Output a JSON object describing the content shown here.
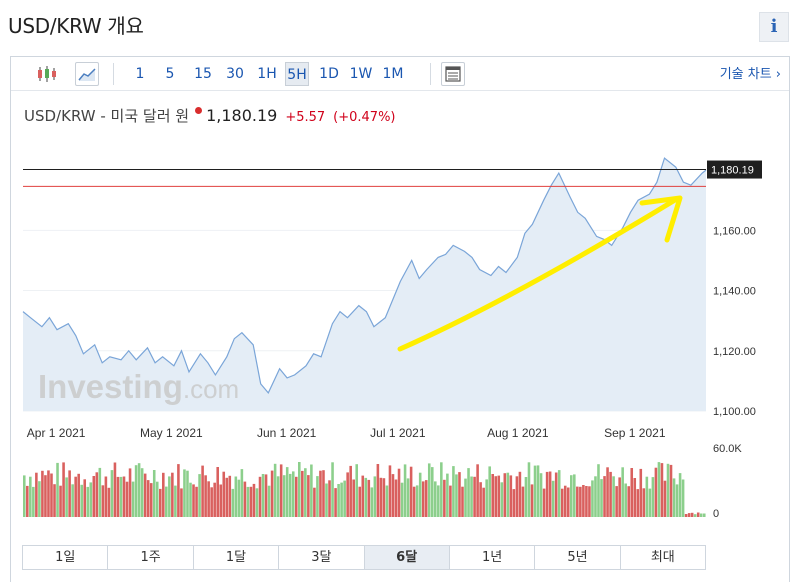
{
  "page": {
    "title": "USD/KRW 개요",
    "info_label": "i"
  },
  "toolbar": {
    "intervals": [
      "1",
      "5",
      "15",
      "30",
      "1H",
      "5H",
      "1D",
      "1W",
      "1M"
    ],
    "active_interval": "5H",
    "advanced_label": "기술 차트 ›"
  },
  "quote": {
    "name": "USD/KRW - 미국 달러 원",
    "price": "1,180.19",
    "change": "+5.57",
    "change_pct": "(+0.47%)"
  },
  "ranges": {
    "items": [
      "1일",
      "1주",
      "1달",
      "3달",
      "6달",
      "1년",
      "5년",
      "최대"
    ],
    "active": "6달"
  },
  "watermark": {
    "text_main": "Investing",
    "text_suffix": ".com"
  },
  "chart_data": {
    "type": "area",
    "colors": {
      "line": "#7aa5d8",
      "fill": "#e4edf6",
      "up": "#8ccf8c",
      "down": "#d9605e",
      "current_line": "#1f1f1f",
      "prev_close_line": "#e0403e",
      "arrow": "#ffee00"
    },
    "y_axis": {
      "ticks": [
        1100,
        1120,
        1140,
        1160
      ],
      "tick_labels": [
        "1,100.00",
        "1,120.00",
        "1,140.00",
        "1,160.00"
      ],
      "range": [
        1100,
        1190
      ]
    },
    "x_axis": {
      "ticks": [
        "2021-04-01",
        "2021-05-01",
        "2021-06-01",
        "2021-07-01",
        "2021-08-01",
        "2021-09-01"
      ],
      "tick_labels": [
        "Apr 1 2021",
        "May 1 2021",
        "Jun 1 2021",
        "Jul 1 2021",
        "Aug 1 2021",
        "Sep 1 2021"
      ],
      "range": [
        "2021-03-31",
        "2021-09-28"
      ]
    },
    "current_price": {
      "value": 1180.19,
      "label": "1,180.19"
    },
    "previous_close": 1174.6,
    "series": [
      {
        "points": [
          [
            "2021-03-31",
            1133
          ],
          [
            "2021-04-02",
            1131
          ],
          [
            "2021-04-05",
            1128
          ],
          [
            "2021-04-07",
            1131
          ],
          [
            "2021-04-09",
            1127
          ],
          [
            "2021-04-12",
            1129
          ],
          [
            "2021-04-14",
            1125
          ],
          [
            "2021-04-16",
            1119
          ],
          [
            "2021-04-19",
            1122
          ],
          [
            "2021-04-21",
            1116
          ],
          [
            "2021-04-23",
            1118
          ],
          [
            "2021-04-26",
            1117
          ],
          [
            "2021-04-28",
            1120
          ],
          [
            "2021-04-30",
            1117
          ],
          [
            "2021-05-03",
            1121
          ],
          [
            "2021-05-05",
            1116
          ],
          [
            "2021-05-07",
            1118
          ],
          [
            "2021-05-10",
            1115
          ],
          [
            "2021-05-12",
            1120
          ],
          [
            "2021-05-14",
            1113
          ],
          [
            "2021-05-17",
            1119
          ],
          [
            "2021-05-19",
            1116
          ],
          [
            "2021-05-21",
            1112
          ],
          [
            "2021-05-24",
            1118
          ],
          [
            "2021-05-26",
            1124
          ],
          [
            "2021-05-28",
            1126
          ],
          [
            "2021-05-31",
            1122
          ],
          [
            "2021-06-02",
            1109
          ],
          [
            "2021-06-04",
            1106
          ],
          [
            "2021-06-07",
            1114
          ],
          [
            "2021-06-09",
            1111
          ],
          [
            "2021-06-11",
            1112
          ],
          [
            "2021-06-14",
            1115
          ],
          [
            "2021-06-16",
            1119
          ],
          [
            "2021-06-18",
            1118
          ],
          [
            "2021-06-21",
            1129
          ],
          [
            "2021-06-23",
            1133
          ],
          [
            "2021-06-25",
            1131
          ],
          [
            "2021-06-28",
            1135
          ],
          [
            "2021-06-30",
            1133
          ],
          [
            "2021-07-02",
            1128
          ],
          [
            "2021-07-05",
            1131
          ],
          [
            "2021-07-07",
            1137
          ],
          [
            "2021-07-09",
            1143
          ],
          [
            "2021-07-12",
            1150
          ],
          [
            "2021-07-14",
            1144
          ],
          [
            "2021-07-16",
            1147
          ],
          [
            "2021-07-19",
            1151
          ],
          [
            "2021-07-21",
            1152
          ],
          [
            "2021-07-23",
            1155
          ],
          [
            "2021-07-26",
            1153
          ],
          [
            "2021-07-28",
            1151
          ],
          [
            "2021-07-30",
            1147
          ],
          [
            "2021-08-02",
            1145
          ],
          [
            "2021-08-04",
            1148
          ],
          [
            "2021-08-06",
            1146
          ],
          [
            "2021-08-09",
            1151
          ],
          [
            "2021-08-11",
            1159
          ],
          [
            "2021-08-13",
            1162
          ],
          [
            "2021-08-16",
            1170
          ],
          [
            "2021-08-18",
            1175
          ],
          [
            "2021-08-20",
            1179
          ],
          [
            "2021-08-23",
            1171
          ],
          [
            "2021-08-25",
            1166
          ],
          [
            "2021-08-27",
            1164
          ],
          [
            "2021-08-30",
            1158
          ],
          [
            "2021-09-01",
            1157
          ],
          [
            "2021-09-03",
            1155
          ],
          [
            "2021-09-06",
            1161
          ],
          [
            "2021-09-08",
            1166
          ],
          [
            "2021-09-10",
            1170
          ],
          [
            "2021-09-13",
            1172
          ],
          [
            "2021-09-15",
            1176
          ],
          [
            "2021-09-17",
            1184
          ],
          [
            "2021-09-20",
            1181
          ],
          [
            "2021-09-22",
            1176
          ],
          [
            "2021-09-24",
            1175
          ],
          [
            "2021-09-27",
            1179
          ],
          [
            "2021-09-28",
            1180
          ]
        ]
      }
    ],
    "volume": {
      "tick_labels": [
        "60.0K",
        "0"
      ],
      "range": [
        0,
        60000
      ]
    }
  }
}
